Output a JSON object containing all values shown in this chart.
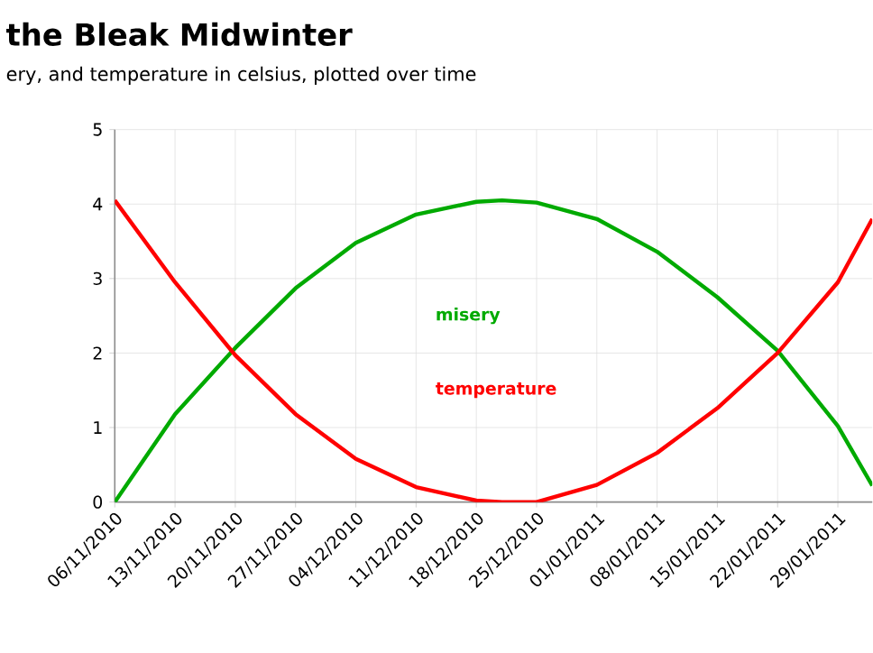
{
  "chart_data": {
    "type": "line",
    "title": "the Bleak Midwinter",
    "subtitle": "ery, and temperature in celsius, plotted over time",
    "x": [
      "2010-11-06",
      "2010-11-13",
      "2010-11-20",
      "2010-11-27",
      "2010-12-04",
      "2010-12-11",
      "2010-12-18",
      "2010-12-21",
      "2010-12-25",
      "2011-01-01",
      "2011-01-08",
      "2011-01-15",
      "2011-01-22",
      "2011-01-29",
      "2011-02-02"
    ],
    "series": [
      {
        "name": "misery",
        "color": "#00aa00",
        "values": [
          0,
          1.18,
          2.07,
          2.87,
          3.48,
          3.86,
          4.03,
          4.05,
          4.02,
          3.8,
          3.36,
          2.75,
          2.03,
          1.02,
          0.22
        ]
      },
      {
        "name": "temperature",
        "color": "#ff0000",
        "values": [
          4.05,
          2.95,
          1.97,
          1.18,
          0.58,
          0.2,
          0.02,
          0,
          0,
          0.23,
          0.66,
          1.26,
          2.0,
          2.95,
          3.8
        ]
      }
    ],
    "xlim": [
      "2010-11-06",
      "2011-02-02"
    ],
    "xticks": [
      {
        "value": "2010-11-06",
        "label": "06/11/2010"
      },
      {
        "value": "2010-11-13",
        "label": "13/11/2010"
      },
      {
        "value": "2010-11-20",
        "label": "20/11/2010"
      },
      {
        "value": "2010-11-27",
        "label": "27/11/2010"
      },
      {
        "value": "2010-12-04",
        "label": "04/12/2010"
      },
      {
        "value": "2010-12-11",
        "label": "11/12/2010"
      },
      {
        "value": "2010-12-18",
        "label": "18/12/2010"
      },
      {
        "value": "2010-12-25",
        "label": "25/12/2010"
      },
      {
        "value": "2011-01-01",
        "label": "01/01/2011"
      },
      {
        "value": "2011-01-08",
        "label": "08/01/2011"
      },
      {
        "value": "2011-01-15",
        "label": "15/01/2011"
      },
      {
        "value": "2011-01-22",
        "label": "22/01/2011"
      },
      {
        "value": "2011-01-29",
        "label": "29/01/2011"
      }
    ],
    "ylim": [
      0,
      5
    ],
    "yticks": [
      0,
      1,
      2,
      3,
      4,
      5
    ],
    "grid": true,
    "marker": "none",
    "line_style": "solid"
  }
}
